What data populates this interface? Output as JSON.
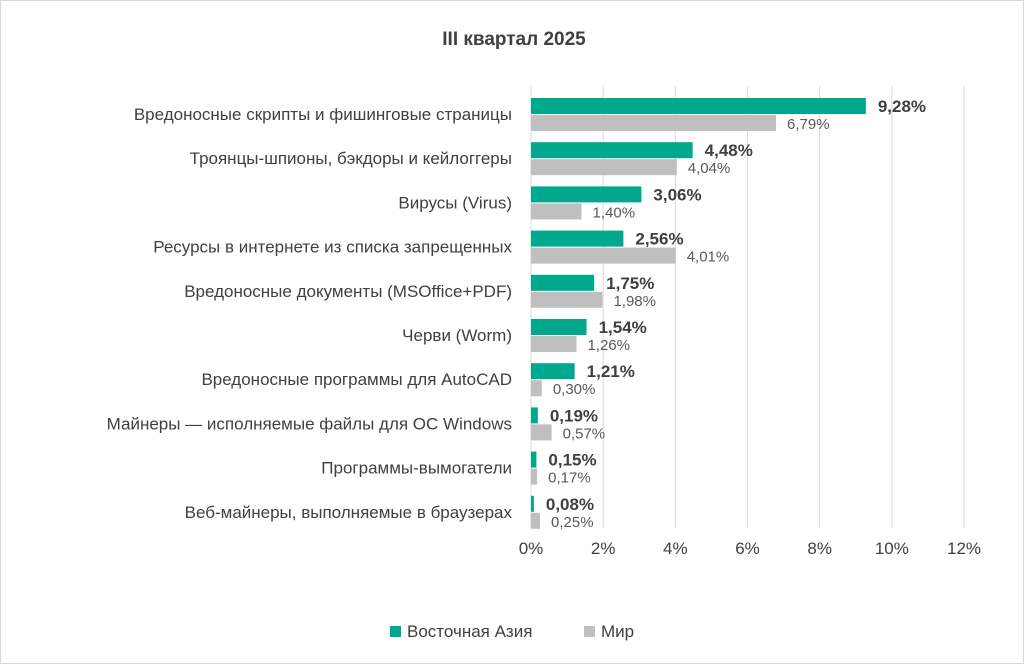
{
  "chart_data": {
    "type": "bar",
    "orientation": "horizontal",
    "title": "III квартал 2025",
    "categories": [
      "Вредоносные скрипты и фишинговые страницы",
      "Троянцы-шпионы, бэкдоры и кейлоггеры",
      "Вирусы (Virus)",
      "Ресурсы в интернете из списка запрещенных",
      "Вредоносные документы (MSOffice+PDF)",
      "Черви (Worm)",
      "Вредоносные программы для AutoCAD",
      "Майнеры — исполняемые файлы для ОС Windows",
      "Программы-вымогатели",
      "Веб-майнеры, выполняемые в браузерах"
    ],
    "series": [
      {
        "name": "Восточная Азия",
        "color": "#00a88e",
        "values": [
          9.28,
          4.48,
          3.06,
          2.56,
          1.75,
          1.54,
          1.21,
          0.19,
          0.15,
          0.08
        ],
        "labels": [
          "9,28%",
          "4,48%",
          "3,06%",
          "2,56%",
          "1,75%",
          "1,54%",
          "1,21%",
          "0,19%",
          "0,15%",
          "0,08%"
        ]
      },
      {
        "name": "Мир",
        "color": "#bfbfbf",
        "values": [
          6.79,
          4.04,
          1.4,
          4.01,
          1.98,
          1.26,
          0.3,
          0.57,
          0.17,
          0.25
        ],
        "labels": [
          "6,79%",
          "4,04%",
          "1,40%",
          "4,01%",
          "1,98%",
          "1,26%",
          "0,30%",
          "0,57%",
          "0,17%",
          "0,25%"
        ]
      }
    ],
    "xlim": [
      0,
      12
    ],
    "xticks": [
      0,
      2,
      4,
      6,
      8,
      10,
      12
    ],
    "xtick_labels": [
      "0%",
      "2%",
      "4%",
      "6%",
      "8%",
      "10%",
      "12%"
    ],
    "grid": "vertical",
    "gridline_color": "#d9d9d9",
    "legend_position": "bottom"
  }
}
